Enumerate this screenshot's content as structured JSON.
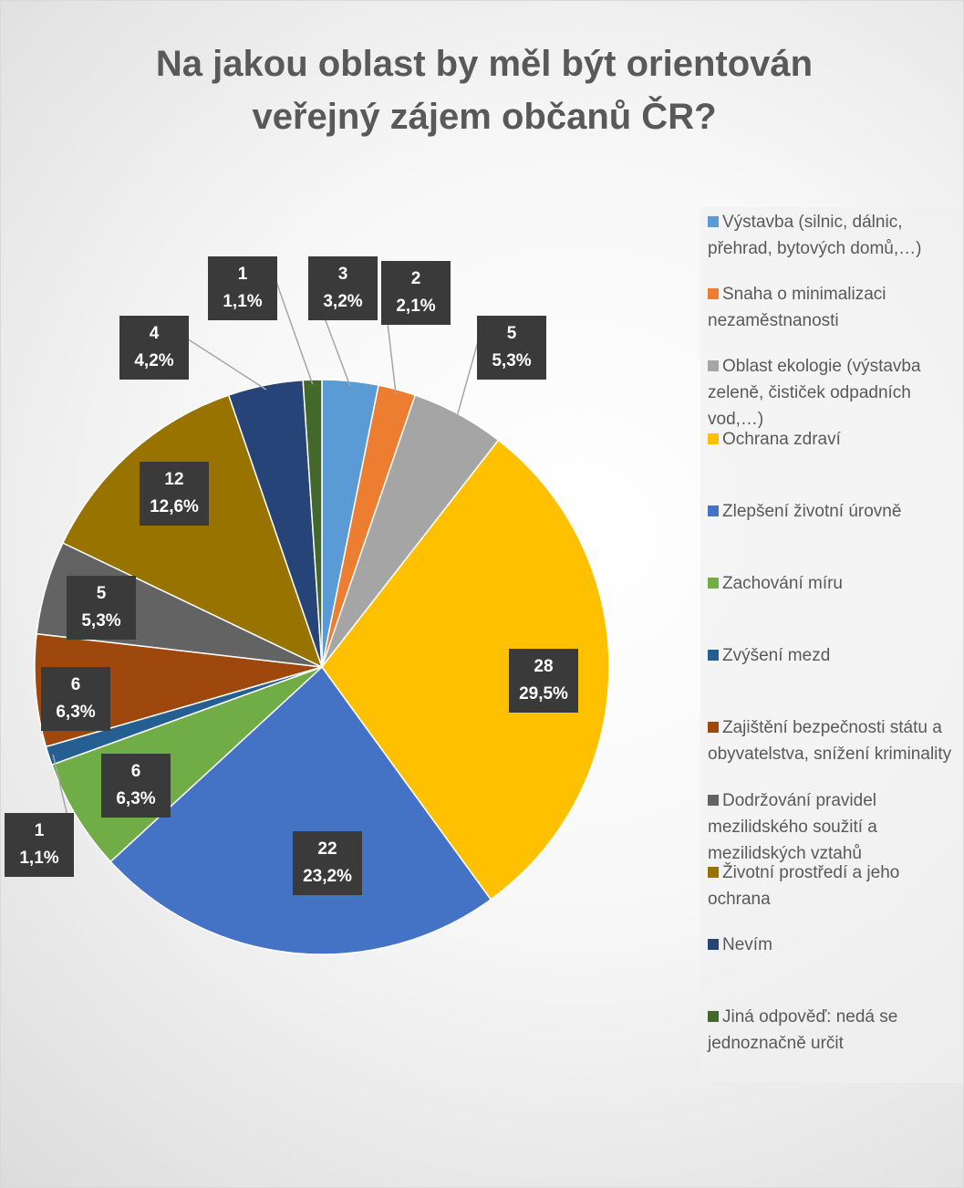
{
  "chart_data": {
    "type": "pie",
    "title": "Na jakou oblast by měl být orientován veřejný zájem občanů ČR?",
    "categories": [
      "Výstavba (silnic, dálnic, přehrad, bytových domů,…)",
      "Snaha o minimalizaci nezaměstnanosti",
      "Oblast ekologie (výstavba zeleně, čističek odpadních vod,…)",
      "Ochrana zdraví",
      "Zlepšení životní úrovně",
      "Zachování míru",
      "Zvýšení mezd",
      "Zajištění bezpečnosti státu a obyvatelstva, snížení kriminality",
      "Dodržování pravidel mezilidského soužití a mezilidských vztahů",
      "Životní prostředí a jeho ochrana",
      "Nevím",
      "Jiná odpověď: nedá se jednoznačně určit"
    ],
    "values": [
      3,
      2,
      5,
      28,
      22,
      6,
      1,
      6,
      5,
      12,
      4,
      1
    ],
    "percent_labels": [
      "3,2%",
      "2,1%",
      "5,3%",
      "29,5%",
      "23,2%",
      "6,3%",
      "1,1%",
      "6,3%",
      "5,3%",
      "12,6%",
      "4,2%",
      "1,1%"
    ],
    "colors": [
      "#5b9bd5",
      "#ed7d31",
      "#a5a5a5",
      "#ffc000",
      "#4472c4",
      "#70ad47",
      "#255e91",
      "#9e480e",
      "#636363",
      "#997300",
      "#264478",
      "#43682b"
    ],
    "legend": "right"
  }
}
